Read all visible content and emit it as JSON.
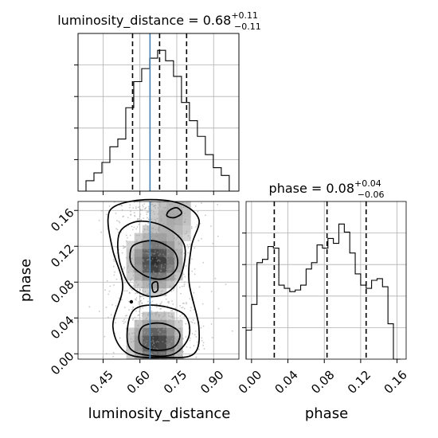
{
  "chart_data": [
    {
      "type": "step-histogram",
      "panel": "luminosity_distance-marginal",
      "title": {
        "param": "luminosity_distance",
        "median": "0.68",
        "upper": "+0.11",
        "lower": "−0.11"
      },
      "x": {
        "range": [
          0.348,
          1.003
        ],
        "ticks": [
          0.45,
          0.6,
          0.75,
          0.9
        ],
        "tick_labels": [
          "0.45",
          "0.60",
          "0.75",
          "0.90"
        ]
      },
      "bin_edges": [
        0.348,
        0.3804,
        0.4128,
        0.4452,
        0.4776,
        0.51,
        0.5424,
        0.5748,
        0.6072,
        0.6396,
        0.672,
        0.7044,
        0.7368,
        0.7692,
        0.8016,
        0.834,
        0.8664,
        0.8988,
        0.9312,
        0.9636,
        1.003
      ],
      "counts": [
        0,
        4,
        7,
        11,
        17,
        20,
        32,
        42,
        47,
        51,
        54,
        50,
        44,
        34,
        27,
        21,
        14,
        9,
        6,
        0
      ],
      "quantile_lines": [
        0.57,
        0.68,
        0.79
      ],
      "truth": 0.641,
      "grid": true
    },
    {
      "type": "step-histogram",
      "panel": "phase-marginal",
      "title": {
        "param": "phase",
        "median": "0.08",
        "upper": "+0.04",
        "lower": "−0.06"
      },
      "x": {
        "label": "phase",
        "range": [
          -0.006,
          0.17
        ],
        "ticks": [
          0.0,
          0.04,
          0.08,
          0.12,
          0.16
        ],
        "tick_labels": [
          "0.00",
          "0.04",
          "0.08",
          "0.12",
          "0.16"
        ]
      },
      "bin_edges": [
        -0.006,
        0.0,
        0.006,
        0.012,
        0.018,
        0.024,
        0.03,
        0.036,
        0.042,
        0.048,
        0.054,
        0.06,
        0.066,
        0.072,
        0.078,
        0.084,
        0.09,
        0.096,
        0.102,
        0.108,
        0.114,
        0.12,
        0.126,
        0.132,
        0.138,
        0.144,
        0.15,
        0.156,
        0.164
      ],
      "counts": [
        0.18,
        0.34,
        0.6,
        0.62,
        0.7,
        0.69,
        0.46,
        0.44,
        0.42,
        0.43,
        0.46,
        0.56,
        0.6,
        0.71,
        0.69,
        0.75,
        0.72,
        0.84,
        0.79,
        0.66,
        0.53,
        0.46,
        0.44,
        0.49,
        0.5,
        0.45,
        0.22,
        0.0
      ],
      "quantile_lines": [
        0.025,
        0.083,
        0.126
      ],
      "grid": true
    },
    {
      "type": "2d-density",
      "panel": "luminosity_distance-vs-phase",
      "x": {
        "label": "luminosity_distance",
        "range": [
          0.348,
          1.003
        ],
        "ticks": [
          0.45,
          0.6,
          0.75,
          0.9
        ],
        "tick_labels": [
          "0.45",
          "0.60",
          "0.75",
          "0.90"
        ]
      },
      "y": {
        "label": "phase",
        "range": [
          -0.006,
          0.17
        ],
        "ticks": [
          0.0,
          0.04,
          0.08,
          0.12,
          0.16
        ],
        "tick_labels": [
          "0.00",
          "0.04",
          "0.08",
          "0.12",
          "0.16"
        ]
      },
      "density_peaks": [
        {
          "x": 0.665,
          "y": 0.103,
          "weight": 1.0
        },
        {
          "x": 0.668,
          "y": 0.012,
          "weight": 0.95
        },
        {
          "x": 0.735,
          "y": 0.155,
          "weight": 0.35
        }
      ],
      "contour_levels": 4,
      "truth": {
        "x": 0.641
      },
      "grid": true
    }
  ],
  "colors": {
    "truth_line": "#4682b4",
    "histogram_step": "#000000",
    "quantile_line": "#000000",
    "grid": "#b0b0b0",
    "scatter_points": "#9a9a9a"
  }
}
